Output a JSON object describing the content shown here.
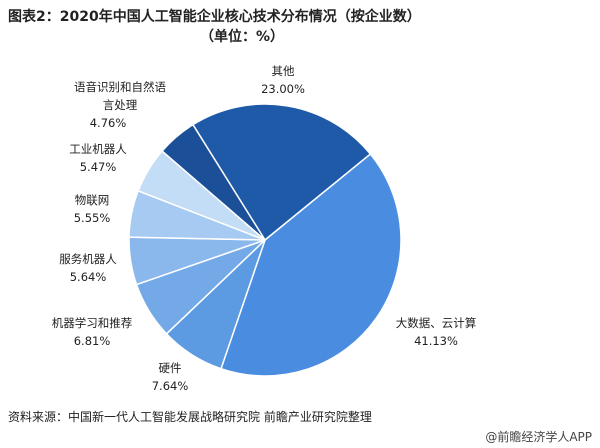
{
  "chart_data": {
    "type": "pie",
    "title": "图表2：2020年中国人工智能企业核心技术分布情况（按企业数）",
    "subtitle": "（单位：%）",
    "categories": [
      "其他",
      "大数据、云计算",
      "硬件",
      "机器学习和推荐",
      "服务机器人",
      "物联网",
      "工业机器人",
      "语音识别和自然语言处理"
    ],
    "values": [
      23,
      41.13,
      7.64,
      6.81,
      5.64,
      5.55,
      5.47,
      4.76
    ],
    "value_labels": [
      "23.00%",
      "41.13%",
      "7.64%",
      "6.81%",
      "5.64%",
      "5.55%",
      "5.47%",
      "4.76%"
    ],
    "colors": [
      "#1f5aa8",
      "#4a8de0",
      "#5c9ae2",
      "#74a9e8",
      "#8bb8ec",
      "#a6caf1",
      "#c4ddf7",
      "#1b4f97"
    ],
    "source": "资料来源：中国新一代人工智能发展战略研究院 前瞻产业研究院整理",
    "credit": "@前瞻经济学人APP"
  }
}
